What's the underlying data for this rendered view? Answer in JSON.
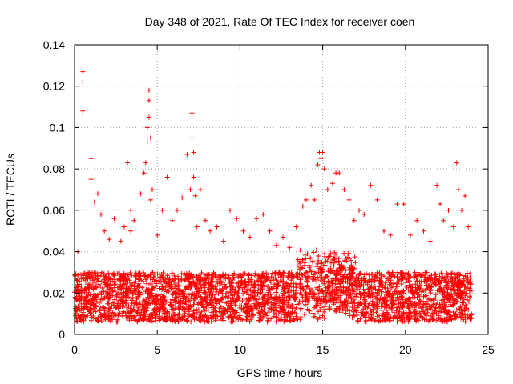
{
  "chart_data": {
    "type": "scatter",
    "title": "Day 348 of 2021, Rate Of TEC Index for receiver coen",
    "xlabel": "GPS time / hours",
    "ylabel": "ROTI / TECUs",
    "xlim": [
      0,
      25
    ],
    "ylim": [
      0,
      0.14
    ],
    "x_ticks": [
      0,
      5,
      10,
      15,
      20,
      25
    ],
    "x_tick_labels": [
      "0",
      "5",
      "10",
      "15",
      "20",
      "25"
    ],
    "y_ticks": [
      0,
      0.02,
      0.04,
      0.06,
      0.08,
      0.1,
      0.12,
      0.14
    ],
    "y_tick_labels": [
      "0",
      "0.02",
      "0.04",
      "0.06",
      "0.08",
      "0.1",
      "0.12",
      "0.14"
    ],
    "grid": true,
    "marker": "+",
    "series_color": "#ff0000",
    "series": [
      {
        "name": "ROTI",
        "x": [
          0.2,
          0.5,
          0.5,
          0.5,
          1.0,
          1.0,
          1.2,
          1.4,
          1.6,
          1.8,
          2.1,
          2.4,
          2.8,
          3.0,
          3.2,
          3.4,
          3.4,
          3.6,
          4.0,
          4.2,
          4.3,
          4.4,
          4.4,
          4.5,
          4.5,
          4.5,
          4.6,
          4.6,
          4.7,
          5.0,
          5.3,
          5.6,
          5.9,
          6.2,
          6.5,
          6.8,
          7.0,
          7.1,
          7.1,
          7.2,
          7.2,
          7.3,
          7.4,
          7.6,
          7.9,
          8.2,
          8.6,
          9.0,
          9.4,
          9.8,
          10.2,
          10.6,
          11.0,
          11.4,
          11.8,
          12.2,
          12.6,
          13.0,
          13.4,
          13.8,
          14.0,
          14.3,
          14.5,
          14.7,
          14.8,
          14.9,
          15.0,
          15.1,
          15.3,
          15.6,
          15.8,
          16.0,
          16.3,
          16.6,
          16.9,
          17.2,
          17.5,
          17.9,
          18.3,
          18.7,
          19.1,
          19.5,
          19.9,
          20.3,
          20.7,
          21.1,
          21.5,
          21.9,
          22.1,
          22.3,
          22.6,
          22.9,
          23.1,
          23.2,
          23.4,
          23.6,
          23.8
        ],
        "y": [
          0.04,
          0.127,
          0.122,
          0.108,
          0.085,
          0.075,
          0.064,
          0.068,
          0.058,
          0.05,
          0.046,
          0.056,
          0.045,
          0.052,
          0.083,
          0.06,
          0.05,
          0.055,
          0.068,
          0.078,
          0.083,
          0.1,
          0.093,
          0.118,
          0.113,
          0.105,
          0.095,
          0.065,
          0.07,
          0.048,
          0.06,
          0.076,
          0.055,
          0.06,
          0.066,
          0.087,
          0.07,
          0.107,
          0.095,
          0.088,
          0.076,
          0.067,
          0.052,
          0.07,
          0.055,
          0.05,
          0.052,
          0.045,
          0.06,
          0.056,
          0.05,
          0.047,
          0.056,
          0.058,
          0.05,
          0.043,
          0.047,
          0.042,
          0.052,
          0.062,
          0.065,
          0.072,
          0.065,
          0.082,
          0.088,
          0.085,
          0.088,
          0.08,
          0.07,
          0.073,
          0.078,
          0.078,
          0.07,
          0.065,
          0.055,
          0.06,
          0.058,
          0.072,
          0.065,
          0.05,
          0.048,
          0.063,
          0.063,
          0.048,
          0.055,
          0.05,
          0.045,
          0.072,
          0.063,
          0.055,
          0.06,
          0.052,
          0.083,
          0.07,
          0.06,
          0.067,
          0.052
        ]
      }
    ]
  }
}
